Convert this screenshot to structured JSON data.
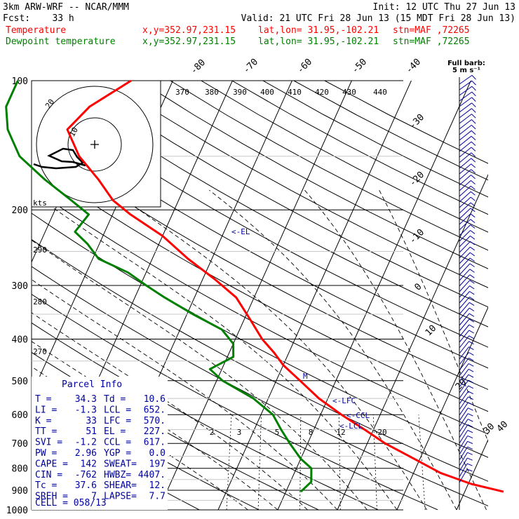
{
  "header": {
    "line1_left": "3km ARW-WRF -- NCAR/MMM",
    "line1_right": "Init: 12 UTC Thu 27 Jun 13",
    "line2_left": "Fcst:    33 h",
    "line2_right": "Valid: 21 UTC Fri 28 Jun 13 (15 MDT Fri 28 Jun 13)",
    "temp_name": "Temperature",
    "dew_name": "Dewpoint temperature",
    "xy": "x,y=352.97,231.15",
    "latlon": "lat,lon= 31.95,-102.21",
    "stn": "stn=MAF ,72265",
    "barb_legend_1": "Full barb:",
    "barb_legend_2": "5 m s⁻¹"
  },
  "colors": {
    "temperature": "#ff0000",
    "dewpoint": "#008000",
    "wind": "#0000a0",
    "hodograph": "#000000"
  },
  "chart_data": {
    "type": "line",
    "subtype": "skew-T log-P",
    "yscale": "log (inverted)",
    "ylim": [
      1000,
      100
    ],
    "pressure_ticks": [
      100,
      200,
      300,
      400,
      500,
      600,
      700,
      800,
      900,
      1000
    ],
    "isotherm_labels": [
      "-80",
      "-70",
      "-60",
      "-50",
      "-40",
      "-30",
      "-20",
      "-10",
      "0",
      "10",
      "20",
      "30",
      "40"
    ],
    "theta_labels": [
      "370",
      "380",
      "390",
      "400",
      "410",
      "420",
      "430",
      "440",
      "290",
      "280",
      "270"
    ],
    "mixing_ratio_labels": [
      "2",
      "3",
      "5",
      "8",
      "12",
      "20"
    ],
    "series": [
      {
        "name": "Temperature",
        "color": "#ff0000",
        "points": [
          [
            907,
            36.5
          ],
          [
            870,
            30.5
          ],
          [
            820,
            24.5
          ],
          [
            760,
            19
          ],
          [
            700,
            13
          ],
          [
            650,
            8.5
          ],
          [
            600,
            3.5
          ],
          [
            550,
            -1.5
          ],
          [
            500,
            -6
          ],
          [
            460,
            -10
          ],
          [
            430,
            -12.5
          ],
          [
            400,
            -15.5
          ],
          [
            360,
            -19
          ],
          [
            320,
            -23
          ],
          [
            290,
            -28
          ],
          [
            260,
            -34
          ],
          [
            230,
            -40
          ],
          [
            205,
            -47
          ],
          [
            190,
            -51
          ],
          [
            170,
            -55
          ],
          [
            150,
            -60
          ],
          [
            130,
            -64
          ],
          [
            115,
            -62
          ],
          [
            100,
            -57
          ]
        ]
      },
      {
        "name": "Dewpoint temperature",
        "color": "#008000",
        "points": [
          [
            907,
            2.5
          ],
          [
            860,
            3.5
          ],
          [
            800,
            2.5
          ],
          [
            760,
            0
          ],
          [
            700,
            -3
          ],
          [
            650,
            -5.5
          ],
          [
            600,
            -8
          ],
          [
            550,
            -12.5
          ],
          [
            500,
            -19
          ],
          [
            470,
            -22
          ],
          [
            440,
            -19
          ],
          [
            410,
            -20
          ],
          [
            380,
            -23
          ],
          [
            350,
            -29
          ],
          [
            320,
            -35
          ],
          [
            300,
            -39
          ],
          [
            280,
            -43
          ],
          [
            260,
            -49
          ],
          [
            240,
            -52
          ],
          [
            225,
            -55
          ],
          [
            205,
            -54
          ],
          [
            190,
            -58
          ],
          [
            170,
            -64
          ],
          [
            150,
            -70
          ],
          [
            130,
            -74
          ],
          [
            115,
            -76
          ],
          [
            100,
            -76
          ]
        ]
      }
    ],
    "annotations": [
      "<-EL",
      "<-LFC",
      "<-CCL",
      "<-LCL",
      "M"
    ],
    "hodograph": {
      "units": "kts",
      "ring_labels": [
        "10",
        "20"
      ]
    },
    "parcel_info": {
      "title": "Parcel Info",
      "rows": [
        [
          "T     =",
          "34.3",
          "Td    =",
          "10.6"
        ],
        [
          "LI    =",
          "-1.3",
          "LCL   =",
          "652."
        ],
        [
          "K     =",
          "33",
          "LFC   =",
          "570."
        ],
        [
          "TT    =",
          "51",
          "EL    =",
          "227."
        ],
        [
          "SVI   =",
          "-1.2",
          "CCL   =",
          "617."
        ],
        [
          "PW    =",
          "2.96",
          "YGP   =",
          "0.0"
        ],
        [
          "CAPE  =",
          "142",
          "SWEAT=",
          "197"
        ],
        [
          "CIN   =",
          "-762",
          "HWBZ=",
          "4407."
        ],
        [
          "Tc    =",
          "37.6",
          "SHEAR=",
          "12."
        ],
        [
          "SREH  =",
          "7",
          "LAPSE=",
          "7.7"
        ]
      ],
      "cell": "CELL = 058/13"
    }
  }
}
